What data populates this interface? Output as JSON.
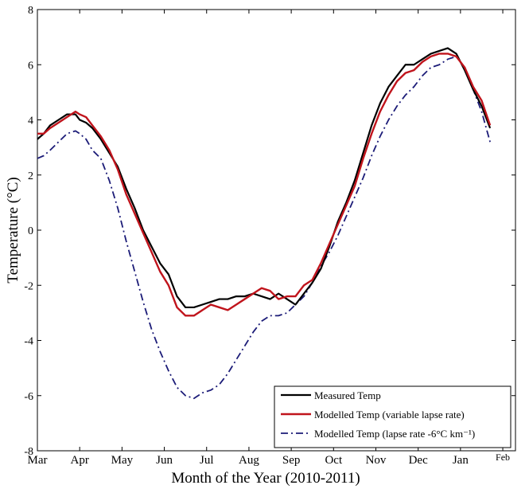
{
  "chart_data": {
    "type": "line",
    "xlabel": "Month of the Year (2010-2011)",
    "ylabel": "Temperature (°C)",
    "xlim": [
      0,
      11.3
    ],
    "ylim": [
      -8,
      8
    ],
    "x_ticks": [
      {
        "pos": 0,
        "label": "Mar"
      },
      {
        "pos": 1,
        "label": "Apr"
      },
      {
        "pos": 2,
        "label": "May"
      },
      {
        "pos": 3,
        "label": "Jun"
      },
      {
        "pos": 4,
        "label": "Jul"
      },
      {
        "pos": 5,
        "label": "Aug"
      },
      {
        "pos": 6,
        "label": "Sep"
      },
      {
        "pos": 7,
        "label": "Oct"
      },
      {
        "pos": 8,
        "label": "Nov"
      },
      {
        "pos": 9,
        "label": "Dec"
      },
      {
        "pos": 10,
        "label": "Jan"
      },
      {
        "pos": 11,
        "label": "Feb"
      }
    ],
    "y_ticks": [
      -8,
      -6,
      -4,
      -2,
      0,
      2,
      4,
      6,
      8
    ],
    "legend_position": "bottom-right",
    "series": [
      {
        "name": "Measured Temp",
        "color": "#000000",
        "style": "solid",
        "x": [
          0.0,
          0.15,
          0.3,
          0.5,
          0.7,
          0.9,
          1.0,
          1.15,
          1.3,
          1.5,
          1.7,
          1.9,
          2.1,
          2.3,
          2.5,
          2.7,
          2.9,
          3.1,
          3.3,
          3.5,
          3.7,
          3.9,
          4.1,
          4.3,
          4.5,
          4.7,
          4.9,
          5.1,
          5.3,
          5.5,
          5.7,
          5.9,
          6.1,
          6.3,
          6.5,
          6.7,
          6.9,
          7.1,
          7.3,
          7.5,
          7.7,
          7.9,
          8.1,
          8.3,
          8.5,
          8.7,
          8.9,
          9.1,
          9.3,
          9.5,
          9.7,
          9.9,
          10.1,
          10.3,
          10.5,
          10.7
        ],
        "values": [
          3.3,
          3.5,
          3.8,
          4.0,
          4.2,
          4.2,
          4.0,
          3.9,
          3.7,
          3.3,
          2.8,
          2.3,
          1.5,
          0.8,
          0.0,
          -0.6,
          -1.2,
          -1.6,
          -2.4,
          -2.8,
          -2.8,
          -2.7,
          -2.6,
          -2.5,
          -2.5,
          -2.4,
          -2.4,
          -2.3,
          -2.4,
          -2.5,
          -2.3,
          -2.5,
          -2.7,
          -2.3,
          -1.9,
          -1.4,
          -0.6,
          0.3,
          1.0,
          1.8,
          2.8,
          3.8,
          4.6,
          5.2,
          5.6,
          6.0,
          6.0,
          6.2,
          6.4,
          6.5,
          6.6,
          6.4,
          5.8,
          5.1,
          4.5,
          3.7
        ]
      },
      {
        "name": "Modelled Temp (variable lapse rate)",
        "color": "#c0141c",
        "style": "solid",
        "x": [
          0.0,
          0.15,
          0.3,
          0.5,
          0.7,
          0.9,
          1.0,
          1.15,
          1.3,
          1.5,
          1.7,
          1.9,
          2.1,
          2.3,
          2.5,
          2.7,
          2.9,
          3.1,
          3.3,
          3.5,
          3.7,
          3.9,
          4.1,
          4.3,
          4.5,
          4.7,
          4.9,
          5.1,
          5.3,
          5.5,
          5.7,
          5.9,
          6.1,
          6.3,
          6.5,
          6.7,
          6.9,
          7.1,
          7.3,
          7.5,
          7.7,
          7.9,
          8.1,
          8.3,
          8.5,
          8.7,
          8.9,
          9.1,
          9.3,
          9.5,
          9.7,
          9.9,
          10.1,
          10.3,
          10.5,
          10.7
        ],
        "values": [
          3.5,
          3.5,
          3.7,
          3.9,
          4.1,
          4.3,
          4.2,
          4.1,
          3.8,
          3.4,
          2.9,
          2.2,
          1.3,
          0.6,
          -0.1,
          -0.8,
          -1.5,
          -2.0,
          -2.8,
          -3.1,
          -3.1,
          -2.9,
          -2.7,
          -2.8,
          -2.9,
          -2.7,
          -2.5,
          -2.3,
          -2.1,
          -2.2,
          -2.5,
          -2.4,
          -2.4,
          -2.0,
          -1.8,
          -1.2,
          -0.5,
          0.2,
          0.9,
          1.6,
          2.6,
          3.5,
          4.3,
          4.9,
          5.4,
          5.7,
          5.8,
          6.1,
          6.3,
          6.4,
          6.4,
          6.3,
          5.9,
          5.2,
          4.7,
          3.8
        ]
      },
      {
        "name": "Modelled Temp (lapse rate -6°C km⁻¹)",
        "color": "#1c1c78",
        "style": "dashdot",
        "x": [
          0.0,
          0.15,
          0.3,
          0.5,
          0.7,
          0.9,
          1.0,
          1.15,
          1.3,
          1.5,
          1.7,
          1.9,
          2.1,
          2.3,
          2.5,
          2.7,
          2.9,
          3.1,
          3.3,
          3.5,
          3.7,
          3.9,
          4.1,
          4.3,
          4.5,
          4.7,
          4.9,
          5.1,
          5.3,
          5.5,
          5.7,
          5.9,
          6.1,
          6.3,
          6.5,
          6.7,
          6.9,
          7.1,
          7.3,
          7.5,
          7.7,
          7.9,
          8.1,
          8.3,
          8.5,
          8.7,
          8.9,
          9.1,
          9.3,
          9.5,
          9.7,
          9.9,
          10.1,
          10.3,
          10.5,
          10.7
        ],
        "values": [
          2.6,
          2.7,
          2.9,
          3.2,
          3.5,
          3.6,
          3.5,
          3.3,
          2.9,
          2.6,
          1.8,
          0.8,
          -0.4,
          -1.5,
          -2.6,
          -3.6,
          -4.4,
          -5.1,
          -5.7,
          -6.0,
          -6.1,
          -5.9,
          -5.8,
          -5.6,
          -5.2,
          -4.7,
          -4.2,
          -3.7,
          -3.3,
          -3.1,
          -3.1,
          -3.0,
          -2.7,
          -2.4,
          -1.9,
          -1.3,
          -0.8,
          -0.2,
          0.5,
          1.2,
          1.9,
          2.7,
          3.4,
          4.0,
          4.5,
          4.9,
          5.2,
          5.6,
          5.9,
          6.0,
          6.2,
          6.3,
          5.9,
          5.1,
          4.3,
          3.2
        ]
      }
    ]
  }
}
